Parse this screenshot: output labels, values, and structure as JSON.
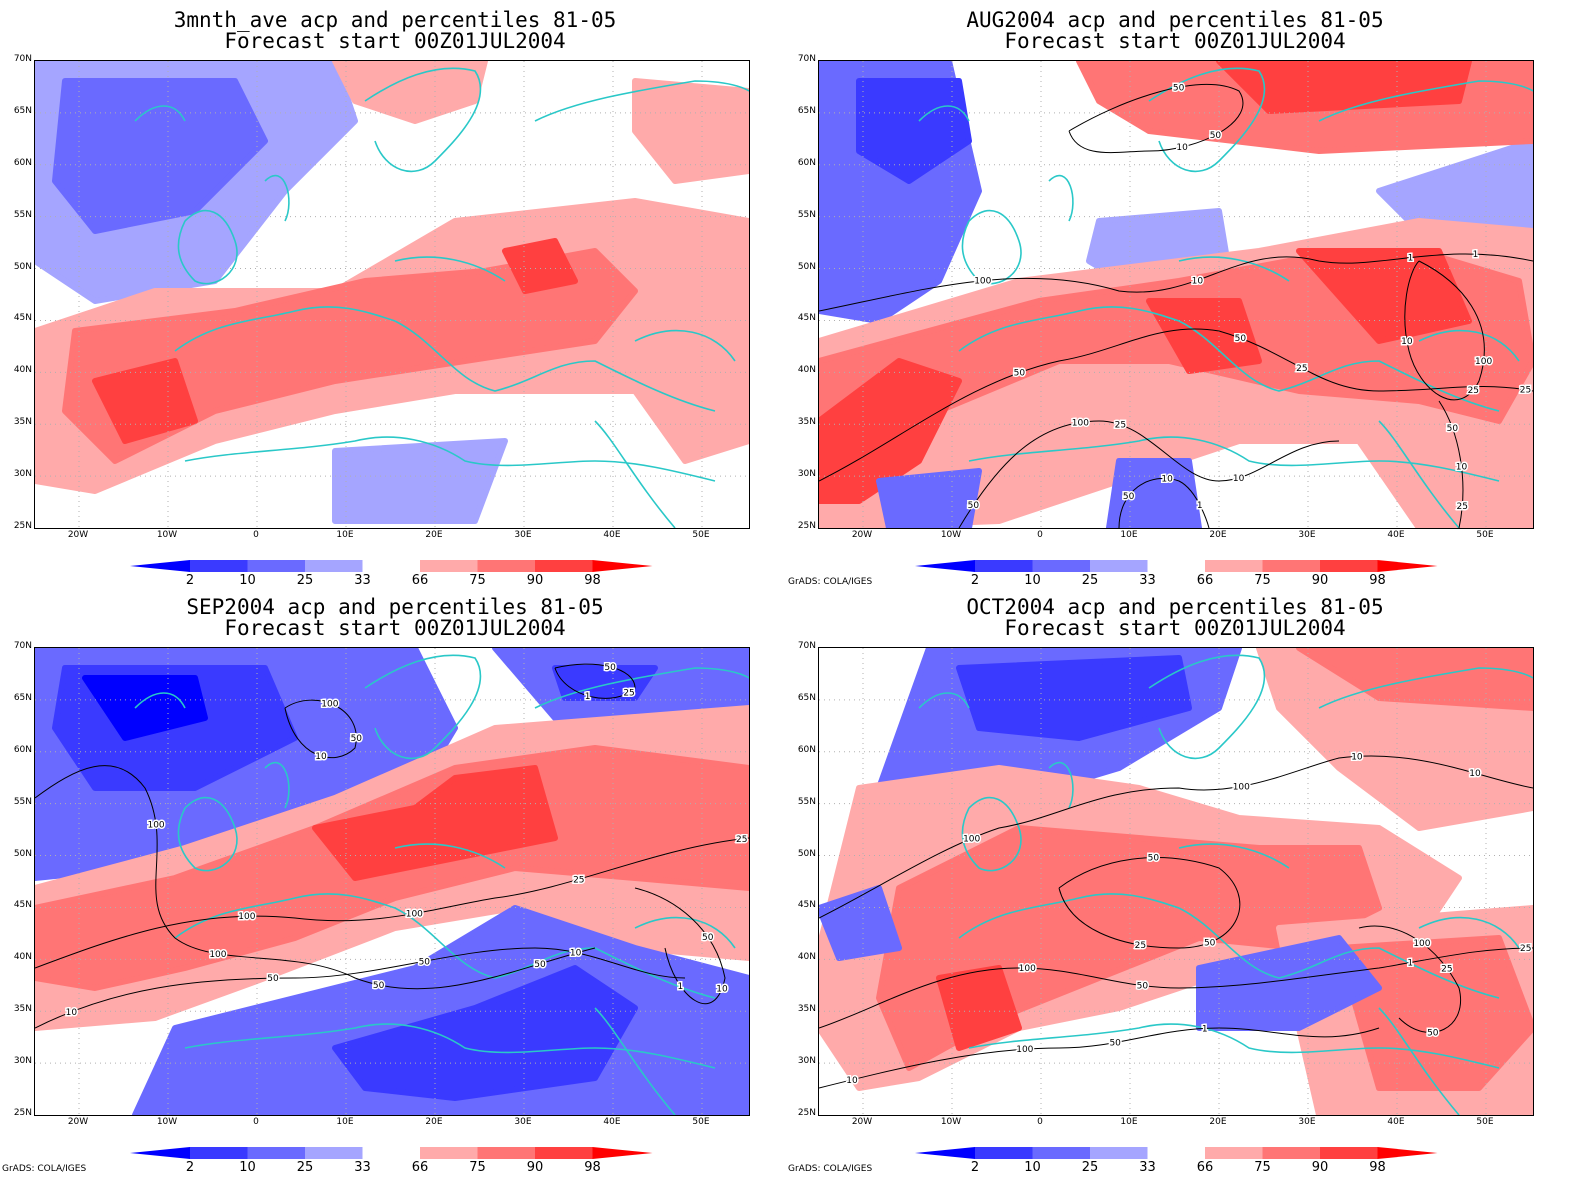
{
  "panels": [
    {
      "title_line1": "3mnth_ave acp and percentiles 81-05",
      "title_line2": "Forecast start 00Z01JUL2004",
      "credit": "",
      "contour_labels": []
    },
    {
      "title_line1": "AUG2004 acp and percentiles 81-05",
      "title_line2": "Forecast start 00Z01JUL2004",
      "credit": "GrADS: COLA/IGES",
      "contour_labels": [
        "100",
        "50",
        "100",
        "50",
        "50",
        "100",
        "50",
        "10",
        "50",
        "25",
        "10",
        "50",
        "25",
        "10",
        "1",
        "25",
        "10",
        "1",
        "10",
        "10",
        "25",
        "1",
        "25",
        "50"
      ]
    },
    {
      "title_line1": "SEP2004 acp and percentiles 81-05",
      "title_line2": "Forecast start 00Z01JUL2004",
      "credit": "GrADS: COLA/IGES",
      "contour_labels": [
        "100",
        "100",
        "50",
        "100",
        "50",
        "50",
        "100",
        "100",
        "50",
        "50",
        "25",
        "10",
        "50",
        "25",
        "10",
        "10",
        "1",
        "1",
        "50",
        "25",
        "10"
      ]
    },
    {
      "title_line1": "OCT2004 acp and percentiles 81-05",
      "title_line2": "Forecast start 00Z01JUL2004",
      "credit": "GrADS: COLA/IGES",
      "contour_labels": [
        "100",
        "100",
        "100",
        "50",
        "100",
        "100",
        "50",
        "50",
        "50",
        "25",
        "10",
        "1",
        "1",
        "25",
        "50",
        "10",
        "25",
        "10"
      ]
    }
  ],
  "lat_labels": [
    "70N",
    "65N",
    "60N",
    "55N",
    "50N",
    "45N",
    "40N",
    "35N",
    "30N",
    "25N"
  ],
  "lon_labels": [
    "20W",
    "10W",
    "0",
    "10E",
    "20E",
    "30E",
    "40E",
    "50E"
  ],
  "colorbar_labels": [
    "2",
    "10",
    "25",
    "33",
    "66",
    "75",
    "90",
    "98"
  ],
  "colorbar_colors": [
    "#0000ff",
    "#3a3aff",
    "#6a6aff",
    "#a5a5ff",
    "#ffffff",
    "#ffaaaa",
    "#ff7575",
    "#ff4040",
    "#ff0000"
  ],
  "map_colors": {
    "coast": "#2ac8c8",
    "contour": "#000000",
    "grid": "#b0b0b0"
  }
}
